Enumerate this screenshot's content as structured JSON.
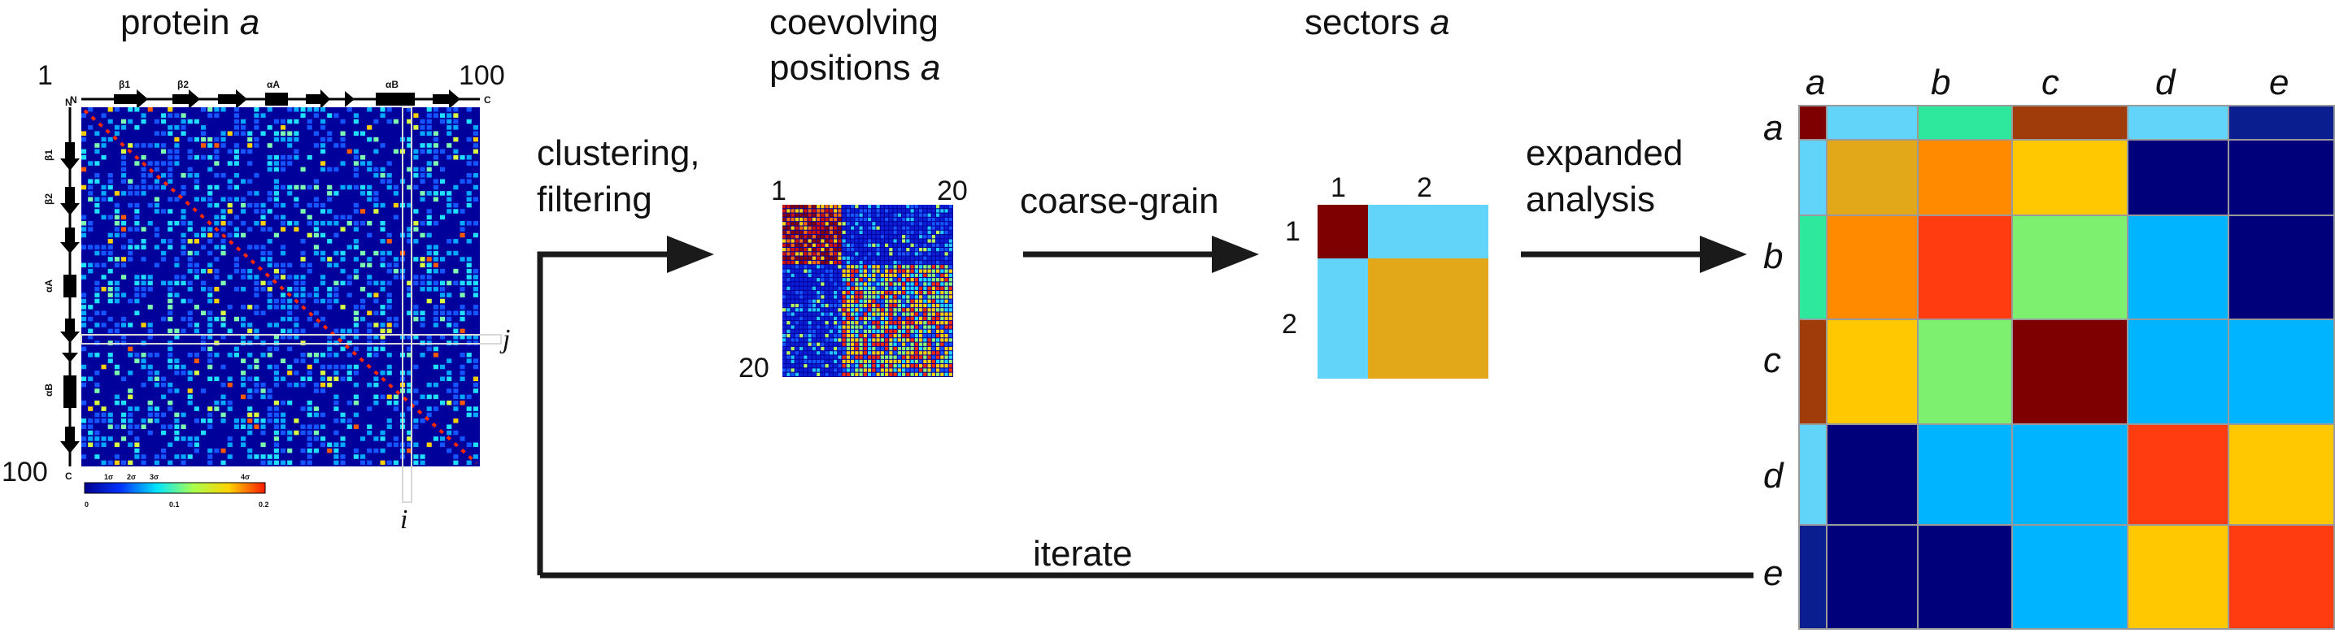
{
  "protein_panel": {
    "title_prefix": "protein",
    "title_var": "a",
    "start_label": "1",
    "end_label": "100",
    "n_term": "N",
    "c_term": "C",
    "sec_structure": [
      "β1",
      "β2",
      "αA",
      "αB"
    ],
    "axis_i": "i",
    "axis_j": "j",
    "colorbar_ticks": [
      "0",
      "0.1",
      "0.2"
    ],
    "colorbar_upper": [
      "1σ",
      "2σ",
      "3σ",
      "4σ"
    ]
  },
  "coevolving_panel": {
    "title_line1": "coevolving",
    "title_line2": "positions",
    "title_var": "a",
    "start_label": "1",
    "end_label_top": "20",
    "end_label_left": "20"
  },
  "sectors_panel": {
    "title": "sectors",
    "title_var": "a",
    "col_labels": [
      "1",
      "2"
    ],
    "row_labels": [
      "1",
      "2"
    ],
    "colors": {
      "cell_11": "#7f0000",
      "cell_12": "#62d4fa",
      "cell_21": "#62d4fa",
      "cell_22": "#e2a81a"
    }
  },
  "arrows": {
    "clustering_line1": "clustering,",
    "clustering_line2": "filtering",
    "coarse_grain": "coarse-grain",
    "expanded_line1": "expanded",
    "expanded_line2": "analysis",
    "iterate": "iterate"
  },
  "expanded_matrix": {
    "col_labels": [
      "a",
      "b",
      "c",
      "d",
      "e"
    ],
    "row_labels": [
      "a",
      "b",
      "c",
      "d",
      "e"
    ]
  },
  "colors": {
    "arrow": "#1a1a1a",
    "heatmap_bg": "#00009a",
    "grid_line": "#999999"
  }
}
